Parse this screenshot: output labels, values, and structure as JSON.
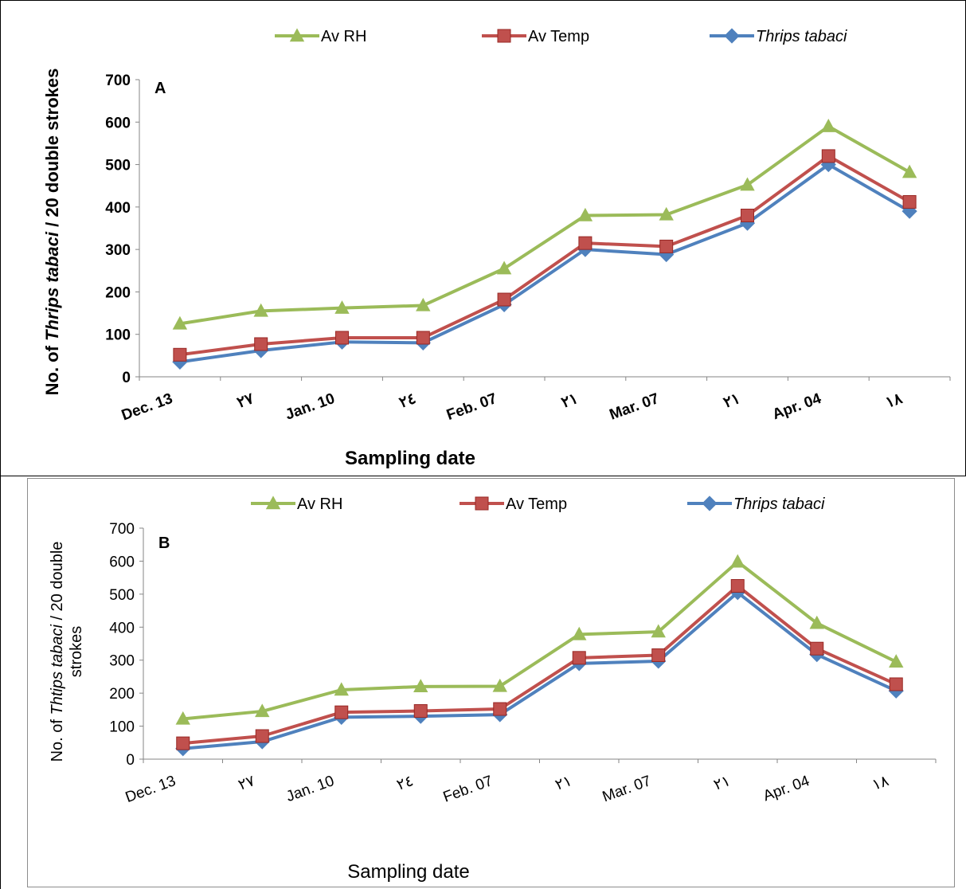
{
  "chart_data": [
    {
      "type": "line",
      "panel_label": "A",
      "categories": [
        "Dec. 13",
        "٢٧",
        "Jan. 10",
        "٢٤",
        "Feb. 07",
        "٢١",
        "Mar. 07",
        "٢١",
        "Apr. 04",
        "١٨"
      ],
      "ylabel_parts": [
        "No. of ",
        "Thrips tabaci",
        " / 20 double strokes"
      ],
      "xlabel": "Sampling date",
      "ylim": [
        0,
        700
      ],
      "yticks": [
        "0",
        "100",
        "200",
        "300",
        "400",
        "500",
        "600",
        "700"
      ],
      "series": [
        {
          "name": "Av RH",
          "color": "#9bbb59",
          "marker": "triangle",
          "values": [
            125,
            155,
            162,
            168,
            255,
            380,
            382,
            452,
            590,
            482
          ]
        },
        {
          "name": "Av Temp",
          "color": "#c0504d",
          "marker": "square",
          "values": [
            52,
            77,
            92,
            92,
            182,
            315,
            307,
            380,
            520,
            412
          ]
        },
        {
          "name": "Thrips tabaci",
          "color": "#4f81bd",
          "marker": "diamond",
          "italic": true,
          "values": [
            35,
            62,
            82,
            80,
            170,
            300,
            288,
            362,
            500,
            390
          ]
        }
      ]
    },
    {
      "type": "line",
      "panel_label": "B",
      "categories": [
        "Dec. 13",
        "٢٧",
        "Jan. 10",
        "٢٤",
        "Feb. 07",
        "٢١",
        "Mar. 07",
        "٢١",
        "Apr. 04",
        "١٨"
      ],
      "ylabel_parts": [
        "No. of ",
        "Thtips tabaci",
        " / 20 double"
      ],
      "ylabel_line2": "strokes",
      "xlabel": "Sampling date",
      "ylim": [
        0,
        700
      ],
      "yticks": [
        "0",
        "100",
        "200",
        "300",
        "400",
        "500",
        "600",
        "700"
      ],
      "series": [
        {
          "name": "Av RH",
          "color": "#9bbb59",
          "marker": "triangle",
          "values": [
            122,
            145,
            210,
            220,
            221,
            378,
            386,
            598,
            412,
            295
          ]
        },
        {
          "name": "Av Temp",
          "color": "#c0504d",
          "marker": "square",
          "values": [
            48,
            70,
            142,
            146,
            152,
            307,
            315,
            525,
            335,
            227
          ]
        },
        {
          "name": "Thrips tabaci",
          "color": "#4f81bd",
          "marker": "diamond",
          "italic": true,
          "values": [
            32,
            53,
            127,
            130,
            135,
            290,
            297,
            505,
            317,
            207
          ]
        }
      ]
    }
  ]
}
